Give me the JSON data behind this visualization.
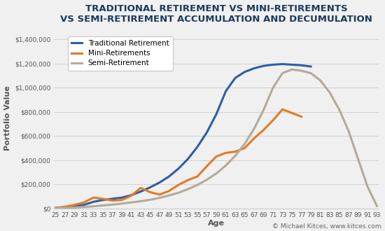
{
  "title_line1": "TRADITIONAL RETIREMENT VS MINI-RETIREMENTS",
  "title_line2": "VS SEMI-RETIREMENT ACCUMULATION AND DECUMULATION",
  "xlabel": "Age",
  "ylabel": "Portfolio Value",
  "copyright": "© Michael Kitces, www.kitces.com",
  "background_color": "#f0f0f0",
  "plot_bg_color": "#f0f0f0",
  "title_color": "#1a3a5c",
  "axis_color": "#555555",
  "grid_color": "#cccccc",
  "ages": [
    25,
    27,
    29,
    31,
    33,
    35,
    37,
    39,
    41,
    43,
    45,
    47,
    49,
    51,
    53,
    55,
    57,
    59,
    61,
    63,
    65,
    67,
    69,
    71,
    73,
    75,
    77,
    79,
    81,
    83,
    85,
    87,
    89,
    91,
    93
  ],
  "traditional": [
    5000,
    10000,
    18000,
    30000,
    55000,
    70000,
    80000,
    90000,
    110000,
    140000,
    175000,
    215000,
    265000,
    330000,
    410000,
    510000,
    630000,
    780000,
    970000,
    1080000,
    1130000,
    1160000,
    1180000,
    1190000,
    1195000,
    1190000,
    1185000,
    1175000,
    null,
    null,
    null,
    null,
    null,
    null,
    null
  ],
  "mini": [
    5000,
    15000,
    30000,
    50000,
    90000,
    80000,
    65000,
    70000,
    105000,
    170000,
    135000,
    115000,
    145000,
    195000,
    235000,
    265000,
    350000,
    430000,
    460000,
    470000,
    500000,
    580000,
    650000,
    730000,
    820000,
    790000,
    760000,
    null,
    null,
    null,
    null,
    null,
    null,
    null,
    null
  ],
  "semi": [
    3000,
    5000,
    8000,
    12000,
    18000,
    25000,
    32000,
    40000,
    50000,
    60000,
    72000,
    88000,
    108000,
    130000,
    160000,
    195000,
    238000,
    290000,
    355000,
    435000,
    535000,
    660000,
    815000,
    1000000,
    1120000,
    1150000,
    1140000,
    1120000,
    1060000,
    960000,
    820000,
    640000,
    410000,
    180000,
    20000
  ],
  "traditional_color": "#2e5fa3",
  "mini_color": "#e07b2a",
  "semi_color": "#b5a99a",
  "line_width": 2.2,
  "ylim": [
    0,
    1500000
  ],
  "yticks": [
    0,
    200000,
    400000,
    600000,
    800000,
    1000000,
    1200000,
    1400000
  ],
  "legend_labels": [
    "Traditional Retirement",
    "Mini-Retirements",
    "Semi-Retirement"
  ],
  "legend_colors": [
    "#2e5fa3",
    "#e07b2a",
    "#b5a99a"
  ],
  "title_fontsize": 9.5,
  "axis_label_fontsize": 8,
  "tick_fontsize": 6.5,
  "legend_fontsize": 7.5,
  "figwidth": 5.5,
  "figheight": 3.3,
  "dpi": 100
}
